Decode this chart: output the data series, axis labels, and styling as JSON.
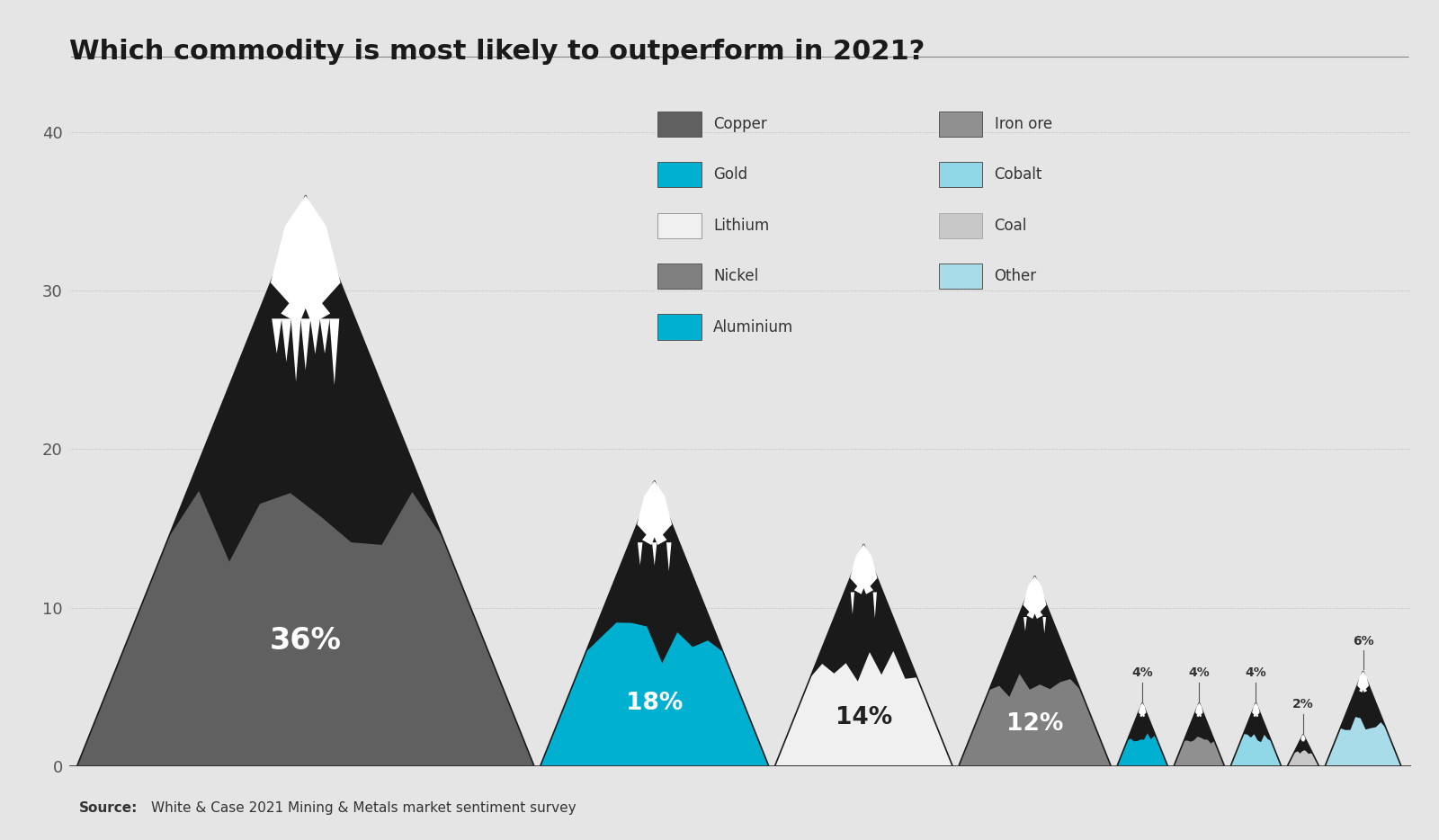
{
  "title": "Which commodity is most likely to outperform in 2021?",
  "source": "White & Case 2021 Mining & Metals market sentiment survey",
  "background_color": "#e5e5e5",
  "commodities": [
    {
      "name": "Copper",
      "value": 36,
      "color": "#606060",
      "peak_color": "#1a1a1a",
      "label_color": "white",
      "label_inside": true
    },
    {
      "name": "Gold",
      "value": 18,
      "color": "#00b0d0",
      "peak_color": "#1a1a1a",
      "label_color": "white",
      "label_inside": true
    },
    {
      "name": "Lithium",
      "value": 14,
      "color": "#f0f0f0",
      "peak_color": "#1a1a1a",
      "label_color": "#222222",
      "label_inside": true
    },
    {
      "name": "Nickel",
      "value": 12,
      "color": "#808080",
      "peak_color": "#1a1a1a",
      "label_color": "white",
      "label_inside": true
    },
    {
      "name": "Aluminium",
      "value": 4,
      "color": "#00b0d0",
      "peak_color": "#1a1a1a",
      "label_color": "#222222",
      "label_inside": false
    },
    {
      "name": "Iron ore",
      "value": 4,
      "color": "#909090",
      "peak_color": "#1a1a1a",
      "label_color": "#222222",
      "label_inside": false
    },
    {
      "name": "Cobalt",
      "value": 4,
      "color": "#90d8e8",
      "peak_color": "#1a1a1a",
      "label_color": "#222222",
      "label_inside": false
    },
    {
      "name": "Coal",
      "value": 2,
      "color": "#c8c8c8",
      "peak_color": "#1a1a1a",
      "label_color": "#222222",
      "label_inside": false
    },
    {
      "name": "Other",
      "value": 6,
      "color": "#a8dce8",
      "peak_color": "#1a1a1a",
      "label_color": "#222222",
      "label_inside": false
    }
  ],
  "legend_left": [
    "Copper",
    "Gold",
    "Lithium",
    "Nickel",
    "Aluminium"
  ],
  "legend_right": [
    "Iron ore",
    "Cobalt",
    "Coal",
    "Other"
  ],
  "legend_colors": {
    "Copper": "#606060",
    "Gold": "#00b0d0",
    "Lithium": "#f0f0f0",
    "Nickel": "#808080",
    "Aluminium": "#00b0d0",
    "Iron ore": "#909090",
    "Cobalt": "#90d8e8",
    "Coal": "#c8c8c8",
    "Other": "#a8dce8"
  },
  "ylim": [
    0,
    43
  ],
  "yticks": [
    0,
    10,
    20,
    30,
    40
  ],
  "xlabel_gap": 0.05
}
